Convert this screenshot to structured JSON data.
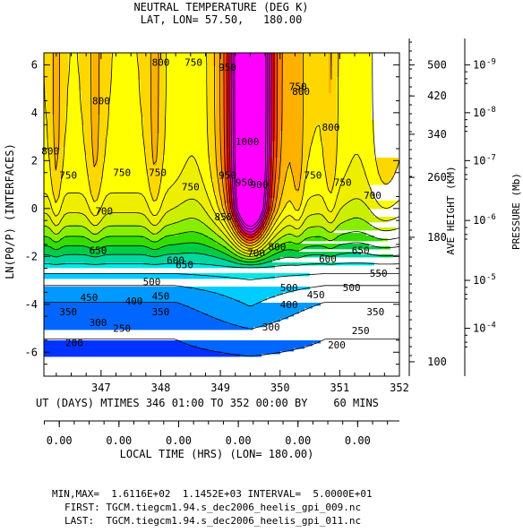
{
  "chart_data": {
    "type": "heatmap",
    "title": "NEUTRAL TEMPERATURE (DEG K)",
    "subtitle": "LAT, LON= 57.50,   180.00",
    "ylabel": "LN(P0/P) (INTERFACES)",
    "xlabel": "UT (DAYS) MTIMES 346 01:00 TO 352 00:00 BY    60 MINS",
    "xlim": [
      346.0417,
      352
    ],
    "ylim": [
      -7,
      6.5
    ],
    "x_ticks": [
      "347",
      "348",
      "349",
      "350",
      "351",
      "352"
    ],
    "x_tick_values": [
      347,
      348,
      349,
      350,
      351,
      352
    ],
    "y_ticks": [
      "6",
      "4",
      "2",
      "0",
      "-2",
      "-4",
      "-6"
    ],
    "y_tick_values": [
      6,
      4,
      2,
      0,
      -2,
      -4,
      -6
    ],
    "height_axis": {
      "label": "AVE HEIGHT (KM)",
      "ticks": [
        {
          "label": "500",
          "z": 6.0
        },
        {
          "label": "420",
          "z": 4.7
        },
        {
          "label": "340",
          "z": 3.1
        },
        {
          "label": "260",
          "z": 1.3
        },
        {
          "label": "180",
          "z": -1.2
        },
        {
          "label": "100",
          "z": -6.4
        }
      ]
    },
    "pressure_axis": {
      "label": "PRESSURE (Mb)",
      "ticks": [
        {
          "base": "10",
          "exp": "-9",
          "z": 6.0
        },
        {
          "base": "10",
          "exp": "-8",
          "z": 4.0
        },
        {
          "base": "10",
          "exp": "-7",
          "z": 2.0
        },
        {
          "base": "10",
          "exp": "-6",
          "z": -0.5
        },
        {
          "base": "10",
          "exp": "-5",
          "z": -3.0
        },
        {
          "base": "10",
          "exp": "-4",
          "z": -5.0
        }
      ]
    },
    "local_time": {
      "label": "LOCAL TIME (HRS) (LON= 180.00)",
      "ticks": [
        "0.00",
        "0.00",
        "0.00",
        "0.00",
        "0.00",
        "0.00"
      ]
    },
    "min": 161.16,
    "max": 1145.2,
    "interval": 50,
    "levels": [
      150,
      200,
      250,
      300,
      350,
      400,
      450,
      500,
      550,
      600,
      650,
      700,
      750,
      800,
      850,
      900,
      950,
      1000,
      1050,
      1100,
      1150
    ],
    "contour_labels": [
      {
        "text": "200",
        "x": 346.55,
        "z": -5.6
      },
      {
        "text": "250",
        "x": 347.35,
        "z": -5.0
      },
      {
        "text": "300",
        "x": 346.95,
        "z": -4.75
      },
      {
        "text": "350",
        "x": 346.45,
        "z": -4.3
      },
      {
        "text": "400",
        "x": 347.55,
        "z": -3.85
      },
      {
        "text": "450",
        "x": 346.8,
        "z": -3.7
      },
      {
        "text": "450",
        "x": 348.0,
        "z": -3.65
      },
      {
        "text": "500",
        "x": 347.85,
        "z": -3.05
      },
      {
        "text": "350",
        "x": 348.0,
        "z": -4.3
      },
      {
        "text": "600",
        "x": 348.25,
        "z": -2.15
      },
      {
        "text": "650",
        "x": 346.95,
        "z": -1.75
      },
      {
        "text": "650",
        "x": 348.4,
        "z": -2.35
      },
      {
        "text": "700",
        "x": 347.05,
        "z": -0.1
      },
      {
        "text": "750",
        "x": 346.45,
        "z": 1.4
      },
      {
        "text": "800",
        "x": 346.15,
        "z": 2.4
      },
      {
        "text": "800",
        "x": 347.0,
        "z": 4.5
      },
      {
        "text": "750",
        "x": 347.35,
        "z": 1.5
      },
      {
        "text": "800",
        "x": 348.0,
        "z": 6.1
      },
      {
        "text": "750",
        "x": 347.95,
        "z": 1.5
      },
      {
        "text": "750",
        "x": 348.55,
        "z": 6.1
      },
      {
        "text": "750",
        "x": 348.5,
        "z": 0.9
      },
      {
        "text": "950",
        "x": 349.12,
        "z": 5.9
      },
      {
        "text": "1000",
        "x": 349.45,
        "z": 2.8
      },
      {
        "text": "950",
        "x": 349.12,
        "z": 1.4
      },
      {
        "text": "950",
        "x": 349.4,
        "z": 1.1
      },
      {
        "text": "900",
        "x": 349.65,
        "z": 1.0
      },
      {
        "text": "850",
        "x": 349.05,
        "z": -0.35
      },
      {
        "text": "800",
        "x": 349.95,
        "z": -1.6
      },
      {
        "text": "700",
        "x": 349.6,
        "z": -1.85
      },
      {
        "text": "800",
        "x": 350.35,
        "z": 4.9
      },
      {
        "text": "750",
        "x": 350.3,
        "z": 5.1
      },
      {
        "text": "750",
        "x": 350.55,
        "z": 1.4
      },
      {
        "text": "800",
        "x": 350.85,
        "z": 3.4
      },
      {
        "text": "750",
        "x": 351.05,
        "z": 1.1
      },
      {
        "text": "700",
        "x": 351.55,
        "z": 0.55
      },
      {
        "text": "650",
        "x": 351.35,
        "z": -1.75
      },
      {
        "text": "600",
        "x": 350.8,
        "z": -2.1
      },
      {
        "text": "550",
        "x": 351.65,
        "z": -2.7
      },
      {
        "text": "500",
        "x": 351.2,
        "z": -3.3
      },
      {
        "text": "500",
        "x": 350.15,
        "z": -3.3
      },
      {
        "text": "450",
        "x": 350.6,
        "z": -3.6
      },
      {
        "text": "400",
        "x": 350.15,
        "z": -4.0
      },
      {
        "text": "350",
        "x": 351.6,
        "z": -4.3
      },
      {
        "text": "300",
        "x": 349.85,
        "z": -4.95
      },
      {
        "text": "250",
        "x": 351.35,
        "z": -5.1
      },
      {
        "text": "200",
        "x": 350.95,
        "z": -5.7
      }
    ]
  },
  "footer": {
    "minmax": "MIN,MAX=  1.6116E+02  1.1452E+03 INTERVAL=  5.0000E+01",
    "first": "FIRST: TGCM.tiegcm1.94.s_dec2006_heelis_gpi_009.nc",
    "last": "LAST:  TGCM.tiegcm1.94.s_dec2006_heelis_gpi_011.nc"
  }
}
